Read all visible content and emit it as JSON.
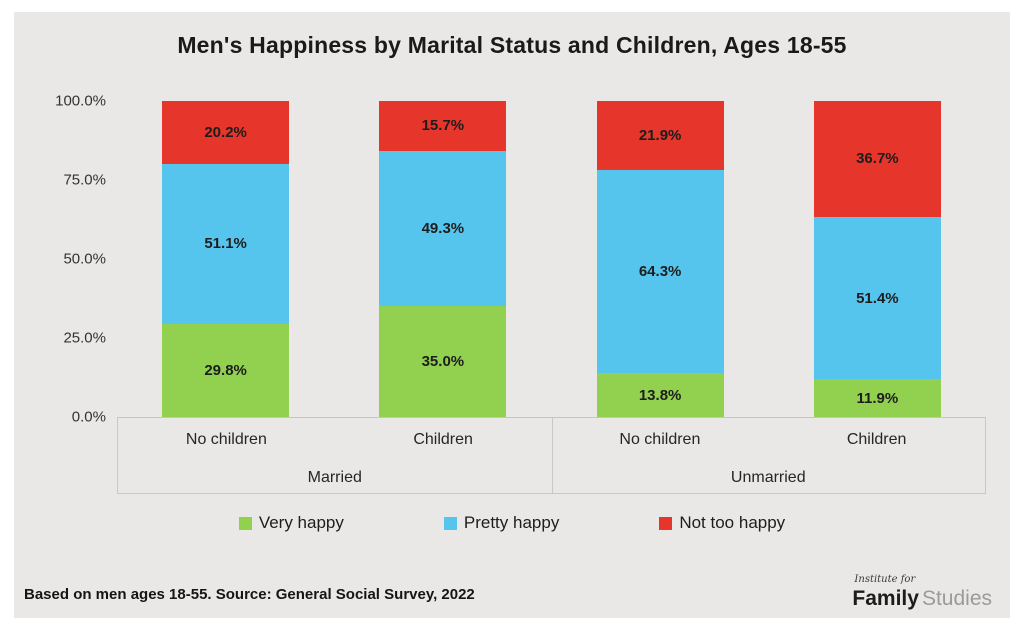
{
  "page": {
    "title": "Men's Happiness by Marital Status and Children, Ages 18-55",
    "footnote": "Based on men ages 18-55. Source: General Social Survey, 2022"
  },
  "logo": {
    "line1": "Institute for",
    "word_bold": "Family",
    "word_light": "Studies"
  },
  "colors": {
    "panel_background": "#e9e8e6",
    "very_happy_green": "#92d050",
    "pretty_happy_blue": "#56c5ee",
    "not_too_happy_red": "#e6352b",
    "axis_line": "#cac8c4"
  },
  "chart_data": {
    "type": "bar",
    "variant": "100-percent-stacked-column",
    "title": "Men's Happiness by Marital Status and Children, Ages 18-55",
    "categories": [
      "No children",
      "Children",
      "No children",
      "Children"
    ],
    "category_groups": [
      {
        "label": "Married",
        "span": 2
      },
      {
        "label": "Unmarried",
        "span": 2
      }
    ],
    "series": [
      {
        "name": "Very happy",
        "color": "#92d050",
        "values": [
          29.8,
          35.0,
          13.8,
          11.9
        ]
      },
      {
        "name": "Pretty happy",
        "color": "#56c5ee",
        "values": [
          51.1,
          49.3,
          64.3,
          51.4
        ]
      },
      {
        "name": "Not too happy",
        "color": "#e6352b",
        "values": [
          20.2,
          15.7,
          21.9,
          36.7
        ]
      }
    ],
    "data_label_suffix": "%",
    "y_axis": {
      "min": 0,
      "max": 100,
      "ticks": [
        "100.0%",
        "75.0%",
        "50.0%",
        "25.0%",
        "0.0%"
      ]
    },
    "grid": false,
    "legend_position": "bottom",
    "source_note": "Based on men ages 18-55. Source: General Social Survey, 2022"
  }
}
